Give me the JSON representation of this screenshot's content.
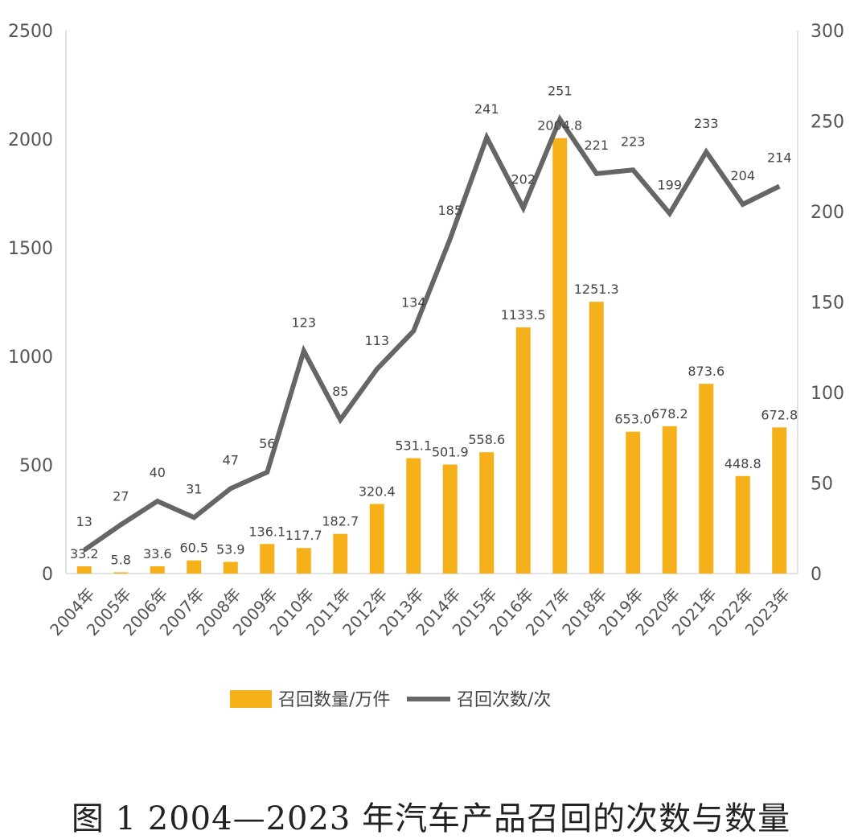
{
  "chart_data": {
    "type": "bar",
    "categories": [
      "2004年",
      "2005年",
      "2006年",
      "2007年",
      "2008年",
      "2009年",
      "2010年",
      "2011年",
      "2012年",
      "2013年",
      "2014年",
      "2015年",
      "2016年",
      "2017年",
      "2018年",
      "2019年",
      "2020年",
      "2021年",
      "2022年",
      "2023年"
    ],
    "series": [
      {
        "name": "召回数量/万件",
        "type": "bar",
        "axis": "left",
        "color": "#F5B01A",
        "values": [
          33.2,
          5.8,
          33.6,
          60.5,
          53.9,
          136.1,
          117.7,
          182.7,
          320.4,
          531.1,
          501.9,
          558.6,
          1133.5,
          2004.8,
          1251.3,
          653.0,
          678.2,
          873.6,
          448.8,
          672.8
        ],
        "labels": [
          "33.2",
          "5.8",
          "33.6",
          "60.5",
          "53.9",
          "136.1",
          "117.7",
          "182.7",
          "320.4",
          "531.1",
          "501.9",
          "558.6",
          "1133.5",
          "2004.8",
          "1251.3",
          "653.0",
          "678.2",
          "873.6",
          "448.8",
          "672.8"
        ]
      },
      {
        "name": "召回次数/次",
        "type": "line",
        "axis": "right",
        "color": "#666666",
        "values": [
          13,
          27,
          40,
          31,
          47,
          56,
          123,
          85,
          113,
          134,
          185,
          241,
          202,
          251,
          221,
          223,
          199,
          233,
          204,
          214
        ],
        "labels": [
          "13",
          "27",
          "40",
          "31",
          "47",
          "56",
          "123",
          "85",
          "113",
          "134",
          "185",
          "241",
          "202",
          "251",
          "221",
          "223",
          "199",
          "233",
          "204",
          "214"
        ]
      }
    ],
    "y_left": {
      "ylim": [
        0,
        2500
      ],
      "ticks": [
        "0",
        "500",
        "1000",
        "1500",
        "2000",
        "2500"
      ]
    },
    "y_right": {
      "ylim": [
        0,
        300
      ],
      "ticks": [
        "0",
        "50",
        "100",
        "150",
        "200",
        "250",
        "300"
      ]
    },
    "legend": {
      "position": "bottom"
    },
    "grid": false
  },
  "caption": "图 1   2004—2023 年汽车产品召回的次数与数量"
}
